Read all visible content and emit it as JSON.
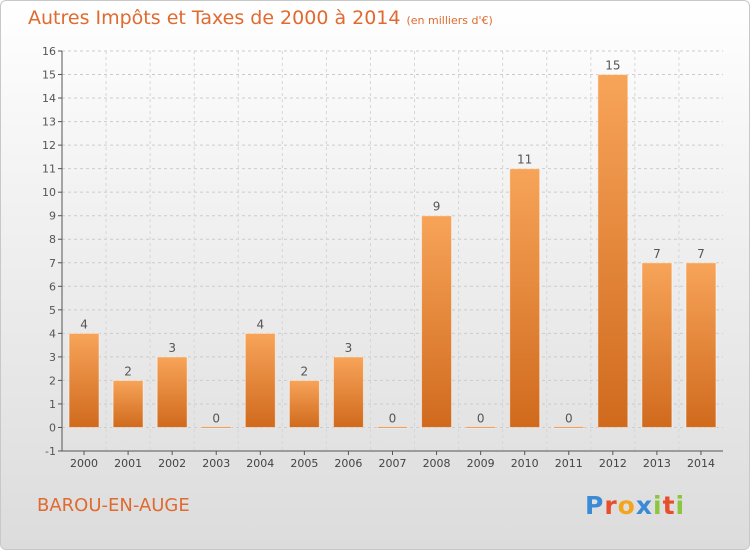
{
  "header": {
    "title": "Autres Impôts et Taxes de 2000 à 2014",
    "subtitle": "(en milliers d'€)"
  },
  "footer": {
    "commune": "BAROU-EN-AUGE",
    "logo_letters": [
      "P",
      "r",
      "o",
      "x",
      "i",
      "t",
      "i"
    ],
    "logo_colors": [
      "#3a8ad6",
      "#e84e2c",
      "#f2a51e",
      "#3a8ad6",
      "#8cc63f",
      "#e84e2c",
      "#8cc63f"
    ]
  },
  "colors": {
    "accent": "#e06a2f",
    "bar_light": "#f7a459",
    "bar_dark": "#d06a1d"
  },
  "chart_data": {
    "type": "bar",
    "categories": [
      "2000",
      "2001",
      "2002",
      "2003",
      "2004",
      "2005",
      "2006",
      "2007",
      "2008",
      "2009",
      "2010",
      "2011",
      "2012",
      "2013",
      "2014"
    ],
    "values": [
      4,
      2,
      3,
      0,
      4,
      2,
      3,
      0,
      9,
      0,
      11,
      0,
      15,
      7,
      7
    ],
    "ylim": [
      -1,
      16
    ],
    "yticks": [
      -1,
      0,
      1,
      2,
      3,
      4,
      5,
      6,
      7,
      8,
      9,
      10,
      11,
      12,
      13,
      14,
      15,
      16
    ],
    "xlabel": "",
    "ylabel": "",
    "grid": true
  }
}
